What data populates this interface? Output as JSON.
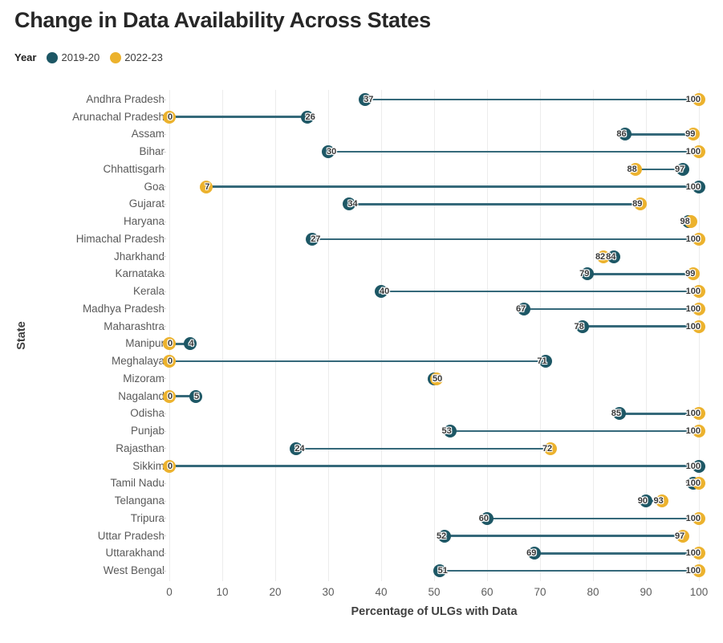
{
  "title": "Change in Data Availability Across States",
  "legend": {
    "label": "Year",
    "series": [
      {
        "name": "2019-20",
        "color": "#1d5765"
      },
      {
        "name": "2022-23",
        "color": "#ecb22d"
      }
    ]
  },
  "colors": {
    "line": "#35697a",
    "dot_2019": "#1d5765",
    "dot_2022": "#ecb22d",
    "grid": "#ececec"
  },
  "chart_data": {
    "type": "dumbbell",
    "title": "Change in Data Availability Across States",
    "xlabel": "Percentage of ULGs with Data",
    "ylabel": "State",
    "xlim": [
      0,
      100
    ],
    "xticks": [
      0,
      10,
      20,
      30,
      40,
      50,
      60,
      70,
      80,
      90,
      100
    ],
    "grid": "vertical-only",
    "legend_position": "top-left",
    "series_names": [
      "2019-20",
      "2022-23"
    ],
    "states": [
      {
        "name": "Andhra Pradesh",
        "v2019": 37,
        "v2022": 100,
        "side2019": "right",
        "side2022": "left"
      },
      {
        "name": "Arunachal Pradesh",
        "v2019": 26,
        "v2022": 0,
        "side2019": "right",
        "side2022": "right"
      },
      {
        "name": "Assam",
        "v2019": 86,
        "v2022": 99,
        "side2019": "left",
        "side2022": "left"
      },
      {
        "name": "Bihar",
        "v2019": 30,
        "v2022": 100,
        "side2019": "right",
        "side2022": "left"
      },
      {
        "name": "Chhattisgarh",
        "v2019": 97,
        "v2022": 88,
        "side2019": "left",
        "side2022": "left"
      },
      {
        "name": "Goa",
        "v2019": 100,
        "v2022": 7,
        "side2019": "left",
        "side2022": "right"
      },
      {
        "name": "Gujarat",
        "v2019": 34,
        "v2022": 89,
        "side2019": "right",
        "side2022": "left"
      },
      {
        "name": "Haryana",
        "v2019": 98,
        "v2022": 98,
        "side2019": "left",
        "side2022": "left"
      },
      {
        "name": "Himachal Pradesh",
        "v2019": 27,
        "v2022": 100,
        "side2019": "right",
        "side2022": "left"
      },
      {
        "name": "Jharkhand",
        "v2019": 84,
        "v2022": 82,
        "side2019": "left",
        "side2022": "left"
      },
      {
        "name": "Karnataka",
        "v2019": 79,
        "v2022": 99,
        "side2019": "left",
        "side2022": "left"
      },
      {
        "name": "Kerala",
        "v2019": 40,
        "v2022": 100,
        "side2019": "right",
        "side2022": "left"
      },
      {
        "name": "Madhya Pradesh",
        "v2019": 67,
        "v2022": 100,
        "side2019": "left",
        "side2022": "left"
      },
      {
        "name": "Maharashtra",
        "v2019": 78,
        "v2022": 100,
        "side2019": "left",
        "side2022": "left"
      },
      {
        "name": "Manipur",
        "v2019": 4,
        "v2022": 0,
        "side2019": "right",
        "side2022": "right"
      },
      {
        "name": "Meghalaya",
        "v2019": 71,
        "v2022": 0,
        "side2019": "left",
        "side2022": "right"
      },
      {
        "name": "Mizoram",
        "v2019": 50,
        "v2022": 50,
        "side2019": "right",
        "side2022": "right"
      },
      {
        "name": "Nagaland",
        "v2019": 5,
        "v2022": 0,
        "side2019": "right",
        "side2022": "right"
      },
      {
        "name": "Odisha",
        "v2019": 85,
        "v2022": 100,
        "side2019": "left",
        "side2022": "left"
      },
      {
        "name": "Punjab",
        "v2019": 53,
        "v2022": 100,
        "side2019": "left",
        "side2022": "left"
      },
      {
        "name": "Rajasthan",
        "v2019": 24,
        "v2022": 72,
        "side2019": "right",
        "side2022": "left"
      },
      {
        "name": "Sikkim",
        "v2019": 100,
        "v2022": 0,
        "side2019": "left",
        "side2022": "right"
      },
      {
        "name": "Tamil Nadu",
        "v2019": 99,
        "v2022": 100,
        "side2019": "left",
        "side2022": "left"
      },
      {
        "name": "Telangana",
        "v2019": 90,
        "v2022": 93,
        "side2019": "left",
        "side2022": "left"
      },
      {
        "name": "Tripura",
        "v2019": 60,
        "v2022": 100,
        "side2019": "left",
        "side2022": "left"
      },
      {
        "name": "Uttar Pradesh",
        "v2019": 52,
        "v2022": 97,
        "side2019": "left",
        "side2022": "left"
      },
      {
        "name": "Uttarakhand",
        "v2019": 69,
        "v2022": 100,
        "side2019": "left",
        "side2022": "left"
      },
      {
        "name": "West Bengal",
        "v2019": 51,
        "v2022": 100,
        "side2019": "right",
        "side2022": "left"
      }
    ]
  }
}
